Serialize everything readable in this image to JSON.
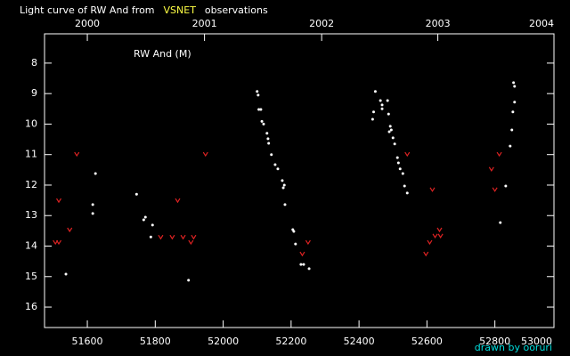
{
  "chart_data": {
    "type": "scatter",
    "title": "Light curve of RW And from",
    "title_highlight": "VSNET",
    "title_end": "observations",
    "label": "RW And (M)",
    "credit": "drawn by ooruri",
    "title_color": "#ffffff",
    "highlight_color": "#ffff44",
    "credit_color": "#00dddd",
    "background": "#000000",
    "axis_color": "#ffffff",
    "xlim": [
      51474,
      52974
    ],
    "ylim": [
      16.67,
      7.04
    ],
    "y_inverted": true,
    "xticks": [
      51600,
      51800,
      52000,
      52200,
      52400,
      52600,
      52800,
      53000
    ],
    "yticks": [
      8,
      9,
      10,
      11,
      12,
      13,
      14,
      15,
      16
    ],
    "x2ticks": [
      {
        "value": 51600,
        "label": "2000"
      },
      {
        "value": 51945,
        "label": "2001"
      },
      {
        "value": 52290,
        "label": "2002"
      },
      {
        "value": 52632,
        "label": "2003"
      },
      {
        "value": 52976,
        "label": "2004"
      }
    ],
    "series": [
      {
        "color": "#ffffff",
        "marker": "dot",
        "x": [
          51537,
          51616,
          51616,
          51624,
          51745,
          51766,
          51771,
          51787,
          51792,
          51898,
          52100,
          52103,
          52105,
          52111,
          52119,
          52114,
          52129,
          52132,
          52134,
          52142,
          52153,
          52161,
          52174,
          52177,
          52180,
          52182,
          52205,
          52208,
          52213,
          52229,
          52237,
          52253,
          52440,
          52443,
          52448,
          52463,
          52468,
          52468,
          52484,
          52487,
          52492,
          52489,
          52495,
          52500,
          52505,
          52513,
          52516,
          52521,
          52529,
          52534,
          52542,
          52816,
          52832,
          52845,
          52850,
          52853,
          52858,
          52855,
          52858
        ],
        "values": [
          14.92,
          12.64,
          12.93,
          11.62,
          12.3,
          13.14,
          13.05,
          13.7,
          13.31,
          15.12,
          8.93,
          9.05,
          9.52,
          9.52,
          10.0,
          9.91,
          10.3,
          10.48,
          10.63,
          11.0,
          11.33,
          11.47,
          11.85,
          12.09,
          12.0,
          12.64,
          13.46,
          13.52,
          13.93,
          14.6,
          14.6,
          14.74,
          9.84,
          9.6,
          8.93,
          9.23,
          9.37,
          9.5,
          9.23,
          9.67,
          10.07,
          10.25,
          10.19,
          10.45,
          10.65,
          11.1,
          11.27,
          11.47,
          11.62,
          12.03,
          12.26,
          13.23,
          12.03,
          10.72,
          10.19,
          9.6,
          9.28,
          8.64,
          8.76
        ]
      },
      {
        "color": "#dd2222",
        "marker": "v",
        "x": [
          51506,
          51516,
          51516,
          51548,
          51569,
          51816,
          51850,
          51866,
          51882,
          51905,
          51913,
          51948,
          52233,
          52250,
          52542,
          52597,
          52608,
          52616,
          52624,
          52637,
          52640,
          52790,
          52800,
          52813
        ],
        "values": [
          13.87,
          13.87,
          12.5,
          13.46,
          10.98,
          13.7,
          13.7,
          12.5,
          13.7,
          13.87,
          13.7,
          10.98,
          14.25,
          13.87,
          10.98,
          14.25,
          13.87,
          12.14,
          13.66,
          13.46,
          13.66,
          11.47,
          12.14,
          10.98
        ]
      }
    ]
  }
}
